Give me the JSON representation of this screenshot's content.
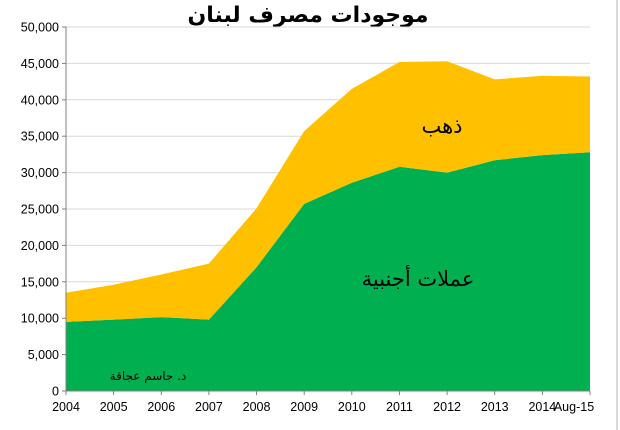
{
  "chart_data": {
    "type": "area",
    "stacked": true,
    "title": "موجودات مصرف لبنان",
    "categories": [
      "2004",
      "2005",
      "2006",
      "2007",
      "2008",
      "2009",
      "2010",
      "2011",
      "2012",
      "2013",
      "2014",
      "Aug-15"
    ],
    "series": [
      {
        "values": [
          9500,
          9800,
          10150,
          9800,
          17000,
          25700,
          28600,
          30800,
          30000,
          31700,
          32400,
          32800
        ],
        "color": "#00b050"
      },
      {
        "values": [
          4000,
          4800,
          5850,
          7700,
          8100,
          10000,
          12900,
          14400,
          15300,
          11100,
          10900,
          10400
        ],
        "color": "#ffc000"
      }
    ],
    "ylim": [
      0,
      50000
    ],
    "yticks": [
      "0",
      "5,000",
      "10,000",
      "15,000",
      "20,000",
      "25,000",
      "30,000",
      "35,000",
      "40,000",
      "45,000",
      "50,000"
    ],
    "grid": true,
    "legend": "none",
    "annotations": {
      "gold": "ذهب",
      "foreign_currency": "عملات أجنبية",
      "author": "د. جاسم عجاقة"
    }
  }
}
